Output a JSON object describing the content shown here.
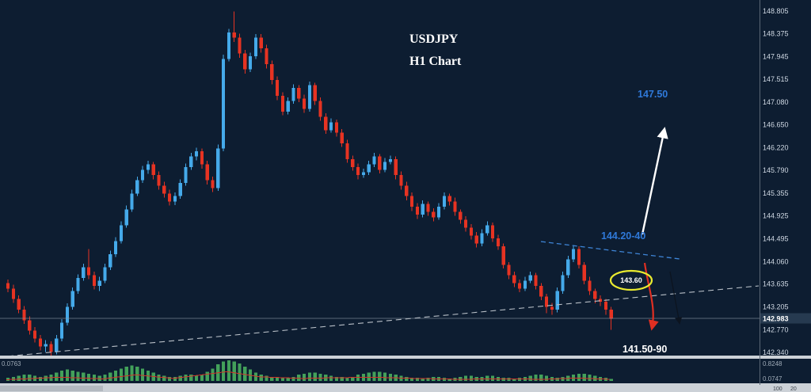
{
  "colors": {
    "background": "#0d1d31",
    "bull": "#45aaea",
    "bear": "#e63322",
    "axis_text": "#cfd8e3",
    "blue_label": "#2f79d9",
    "white_label": "#ffffff",
    "green_bar": "#43a15a",
    "red_line": "#d03428",
    "yellow_ellipse": "#e9ea2f",
    "trendline": "#b9c0c8",
    "blue_trendline": "#3f86d8",
    "divider": "#ccd1d7"
  },
  "chart_data": {
    "type": "candlestick",
    "symbol": "USDJPY",
    "timeframe": "H1 Chart",
    "ylim": [
      142.14,
      148.95
    ],
    "grid": "off",
    "price_axis_labels": [
      "148.805",
      "148.375",
      "147.945",
      "147.515",
      "147.080",
      "146.650",
      "146.220",
      "145.790",
      "145.355",
      "144.925",
      "144.495",
      "144.060",
      "143.635",
      "143.205",
      "142.770",
      "142.340"
    ],
    "current_price": "142.983",
    "annotations": {
      "target_up": "147.50",
      "resistance_zone": "144.20-40",
      "circled_level": "143.60",
      "target_down": "141.50-90"
    },
    "candles": [
      [
        143.65,
        143.72,
        143.48,
        143.55
      ],
      [
        143.55,
        143.62,
        143.28,
        143.35
      ],
      [
        143.35,
        143.42,
        143.08,
        143.15
      ],
      [
        143.15,
        143.22,
        142.88,
        142.95
      ],
      [
        142.95,
        143.02,
        142.68,
        142.75
      ],
      [
        142.75,
        142.82,
        142.53,
        142.6
      ],
      [
        142.6,
        142.67,
        142.38,
        142.45
      ],
      [
        142.45,
        142.57,
        142.35,
        142.5
      ],
      [
        142.5,
        142.55,
        142.25,
        142.35
      ],
      [
        142.35,
        142.67,
        142.3,
        142.6
      ],
      [
        142.6,
        142.97,
        142.55,
        142.9
      ],
      [
        142.9,
        143.27,
        142.85,
        143.2
      ],
      [
        143.2,
        143.57,
        143.15,
        143.5
      ],
      [
        143.5,
        143.82,
        143.45,
        143.75
      ],
      [
        143.75,
        144.02,
        143.7,
        143.95
      ],
      [
        143.95,
        144.3,
        143.73,
        143.8
      ],
      [
        143.8,
        143.87,
        143.53,
        143.6
      ],
      [
        143.6,
        143.77,
        143.5,
        143.7
      ],
      [
        143.7,
        144.02,
        143.65,
        143.95
      ],
      [
        143.95,
        144.27,
        143.9,
        144.2
      ],
      [
        144.2,
        144.52,
        144.15,
        144.45
      ],
      [
        144.45,
        144.82,
        144.4,
        144.75
      ],
      [
        144.75,
        145.12,
        144.7,
        145.05
      ],
      [
        145.05,
        145.42,
        145.0,
        145.35
      ],
      [
        145.35,
        145.67,
        145.3,
        145.6
      ],
      [
        145.6,
        145.87,
        145.55,
        145.8
      ],
      [
        145.8,
        145.97,
        145.72,
        145.9
      ],
      [
        145.9,
        145.95,
        145.62,
        145.7
      ],
      [
        145.7,
        145.77,
        145.42,
        145.5
      ],
      [
        145.5,
        145.57,
        145.27,
        145.35
      ],
      [
        145.35,
        145.42,
        145.12,
        145.2
      ],
      [
        145.2,
        145.37,
        145.13,
        145.3
      ],
      [
        145.3,
        145.62,
        145.25,
        145.55
      ],
      [
        145.55,
        145.92,
        145.5,
        145.85
      ],
      [
        145.85,
        146.12,
        145.8,
        146.05
      ],
      [
        146.05,
        146.22,
        145.98,
        146.15
      ],
      [
        146.15,
        146.2,
        145.82,
        145.9
      ],
      [
        145.9,
        145.97,
        145.52,
        145.6
      ],
      [
        145.6,
        145.67,
        145.38,
        145.45
      ],
      [
        145.45,
        146.28,
        145.4,
        146.2
      ],
      [
        146.2,
        147.98,
        146.15,
        147.9
      ],
      [
        147.9,
        148.47,
        147.85,
        148.4
      ],
      [
        148.4,
        148.8,
        148.22,
        148.3
      ],
      [
        148.3,
        148.38,
        147.92,
        148.0
      ],
      [
        148.0,
        148.07,
        147.62,
        147.7
      ],
      [
        147.7,
        148.02,
        147.65,
        147.95
      ],
      [
        147.95,
        148.37,
        147.9,
        148.3
      ],
      [
        148.3,
        148.37,
        148.02,
        148.1
      ],
      [
        148.1,
        148.17,
        147.72,
        147.8
      ],
      [
        147.8,
        147.87,
        147.42,
        147.5
      ],
      [
        147.5,
        147.57,
        147.12,
        147.2
      ],
      [
        147.2,
        147.27,
        146.83,
        146.9
      ],
      [
        146.9,
        147.17,
        146.85,
        147.1
      ],
      [
        147.1,
        147.42,
        147.05,
        147.35
      ],
      [
        147.35,
        147.4,
        147.08,
        147.15
      ],
      [
        147.15,
        147.22,
        146.88,
        146.95
      ],
      [
        146.95,
        147.47,
        146.9,
        147.4
      ],
      [
        147.4,
        147.45,
        147.03,
        147.1
      ],
      [
        147.1,
        147.17,
        146.73,
        146.8
      ],
      [
        146.8,
        146.87,
        146.48,
        146.55
      ],
      [
        146.55,
        146.77,
        146.5,
        146.7
      ],
      [
        146.7,
        146.75,
        146.43,
        146.5
      ],
      [
        146.5,
        146.57,
        146.23,
        146.3
      ],
      [
        146.3,
        146.37,
        145.93,
        146.0
      ],
      [
        146.0,
        146.07,
        145.78,
        145.85
      ],
      [
        145.85,
        145.92,
        145.62,
        145.7
      ],
      [
        145.7,
        145.82,
        145.65,
        145.75
      ],
      [
        145.75,
        145.97,
        145.7,
        145.9
      ],
      [
        145.9,
        146.12,
        145.85,
        146.05
      ],
      [
        146.05,
        146.1,
        145.73,
        145.8
      ],
      [
        145.8,
        146.02,
        145.75,
        145.95
      ],
      [
        145.95,
        146.07,
        145.9,
        146.0
      ],
      [
        146.0,
        146.05,
        145.62,
        145.7
      ],
      [
        145.7,
        145.77,
        145.42,
        145.5
      ],
      [
        145.5,
        145.57,
        145.22,
        145.3
      ],
      [
        145.3,
        145.37,
        145.02,
        145.1
      ],
      [
        145.1,
        145.17,
        144.87,
        144.95
      ],
      [
        144.95,
        145.22,
        144.9,
        145.15
      ],
      [
        145.15,
        145.2,
        144.93,
        145.0
      ],
      [
        145.0,
        145.07,
        144.82,
        144.9
      ],
      [
        144.9,
        145.17,
        144.85,
        145.1
      ],
      [
        145.1,
        145.37,
        145.05,
        145.3
      ],
      [
        145.3,
        145.35,
        145.12,
        145.2
      ],
      [
        145.2,
        145.27,
        144.93,
        145.0
      ],
      [
        145.0,
        145.05,
        144.78,
        144.85
      ],
      [
        144.85,
        144.92,
        144.63,
        144.7
      ],
      [
        144.7,
        144.77,
        144.48,
        144.55
      ],
      [
        144.55,
        144.62,
        144.33,
        144.4
      ],
      [
        144.4,
        144.67,
        144.35,
        144.6
      ],
      [
        144.6,
        144.82,
        144.55,
        144.75
      ],
      [
        144.75,
        144.8,
        144.43,
        144.5
      ],
      [
        144.5,
        144.57,
        144.28,
        144.35
      ],
      [
        144.35,
        144.4,
        143.93,
        144.0
      ],
      [
        144.0,
        144.05,
        143.73,
        143.8
      ],
      [
        143.8,
        143.87,
        143.58,
        143.65
      ],
      [
        143.65,
        143.72,
        143.48,
        143.55
      ],
      [
        143.55,
        143.77,
        143.5,
        143.7
      ],
      [
        143.7,
        143.87,
        143.65,
        143.8
      ],
      [
        143.8,
        143.85,
        143.53,
        143.6
      ],
      [
        143.6,
        143.65,
        143.33,
        143.4
      ],
      [
        143.4,
        143.45,
        143.08,
        143.2
      ],
      [
        143.2,
        143.28,
        143.05,
        143.15
      ],
      [
        143.15,
        143.57,
        143.1,
        143.5
      ],
      [
        143.5,
        143.87,
        143.45,
        143.8
      ],
      [
        143.8,
        144.17,
        143.75,
        144.1
      ],
      [
        144.1,
        144.37,
        144.05,
        144.3
      ],
      [
        144.3,
        144.35,
        143.93,
        144.0
      ],
      [
        144.0,
        144.05,
        143.63,
        143.7
      ],
      [
        143.7,
        143.77,
        143.43,
        143.5
      ],
      [
        143.5,
        143.55,
        143.27,
        143.35
      ],
      [
        143.35,
        143.42,
        143.22,
        143.3
      ],
      [
        143.3,
        143.35,
        143.05,
        143.15
      ],
      [
        143.15,
        143.2,
        142.77,
        142.98
      ]
    ],
    "indicator": {
      "type": "bar",
      "values": [
        0.15,
        0.2,
        0.25,
        0.3,
        0.3,
        0.25,
        0.2,
        0.25,
        0.3,
        0.4,
        0.5,
        0.55,
        0.5,
        0.45,
        0.4,
        0.35,
        0.3,
        0.25,
        0.3,
        0.4,
        0.5,
        0.6,
        0.7,
        0.75,
        0.7,
        0.6,
        0.5,
        0.4,
        0.3,
        0.25,
        0.2,
        0.2,
        0.25,
        0.3,
        0.3,
        0.25,
        0.3,
        0.45,
        0.6,
        0.8,
        0.95,
        1.0,
        0.95,
        0.85,
        0.7,
        0.55,
        0.4,
        0.3,
        0.25,
        0.2,
        0.2,
        0.15,
        0.15,
        0.2,
        0.3,
        0.35,
        0.4,
        0.4,
        0.35,
        0.3,
        0.25,
        0.2,
        0.2,
        0.15,
        0.2,
        0.3,
        0.35,
        0.4,
        0.45,
        0.45,
        0.4,
        0.35,
        0.3,
        0.25,
        0.2,
        0.15,
        0.15,
        0.1,
        0.15,
        0.2,
        0.2,
        0.15,
        0.1,
        0.15,
        0.2,
        0.25,
        0.25,
        0.2,
        0.2,
        0.25,
        0.25,
        0.2,
        0.15,
        0.15,
        0.1,
        0.15,
        0.2,
        0.25,
        0.3,
        0.3,
        0.25,
        0.2,
        0.15,
        0.2,
        0.25,
        0.3,
        0.35,
        0.35,
        0.3,
        0.25,
        0.2,
        0.15,
        0.1
      ],
      "signal_points": [
        [
          0,
          0.06
        ],
        [
          10,
          0.18
        ],
        [
          18,
          0.1
        ],
        [
          24,
          0.3
        ],
        [
          31,
          0.12
        ],
        [
          41,
          0.45
        ],
        [
          47,
          0.2
        ],
        [
          55,
          0.12
        ],
        [
          60,
          0.15
        ],
        [
          68,
          0.18
        ],
        [
          76,
          0.12
        ],
        [
          84,
          0.08
        ],
        [
          92,
          0.1
        ],
        [
          100,
          0.08
        ],
        [
          106,
          0.14
        ],
        [
          112,
          0.08
        ]
      ],
      "right_label_top": "0.8248",
      "right_label_bottom": "0.0747",
      "left_label": "0.0763"
    },
    "subpane": {
      "labels": [
        "100",
        "20"
      ]
    }
  }
}
